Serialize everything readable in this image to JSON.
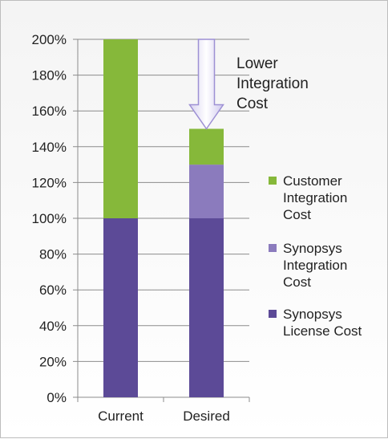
{
  "chart_data": {
    "type": "bar",
    "stacked": true,
    "categories": [
      "Current",
      "Desired"
    ],
    "series": [
      {
        "name": "Synopsys License Cost",
        "values": [
          100,
          100
        ],
        "color": "#5c4a97"
      },
      {
        "name": "Synopsys Integration Cost",
        "values": [
          0,
          30
        ],
        "color": "#8b7bbd"
      },
      {
        "name": "Customer Integration Cost",
        "values": [
          100,
          20
        ],
        "color": "#86b83a"
      }
    ],
    "yticks": [
      "0%",
      "20%",
      "40%",
      "60%",
      "80%",
      "100%",
      "120%",
      "140%",
      "160%",
      "180%",
      "200%"
    ],
    "ylim": [
      0,
      200
    ],
    "grid": true,
    "legend": {
      "position": "right",
      "entries": [
        {
          "lines": [
            "Customer",
            "Integration",
            "Cost"
          ],
          "color": "#86b83a"
        },
        {
          "lines": [
            "Synopsys",
            "Integration",
            "Cost"
          ],
          "color": "#8b7bbd"
        },
        {
          "lines": [
            "Synopsys",
            "License Cost"
          ],
          "color": "#5c4a97"
        }
      ]
    },
    "annotation": {
      "lines": [
        "Lower",
        "Integration",
        "Cost"
      ],
      "arrow_from": 200,
      "arrow_to": 150
    }
  }
}
